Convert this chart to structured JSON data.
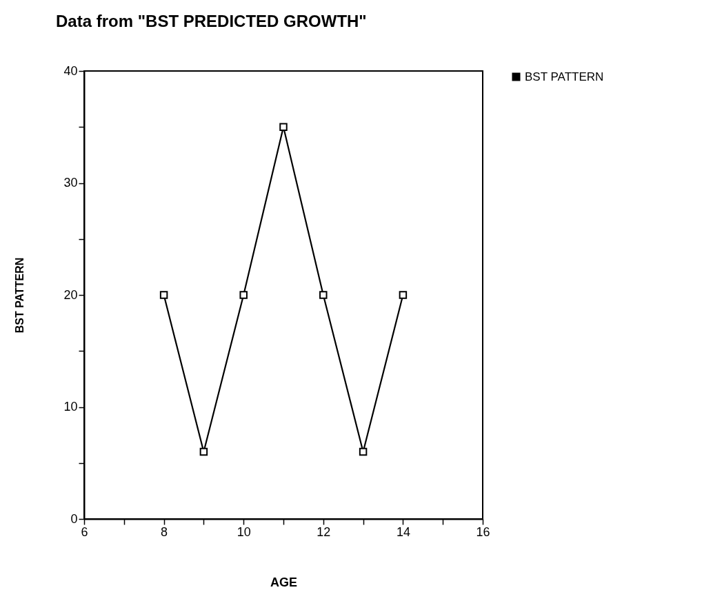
{
  "chart_data": {
    "type": "line",
    "title": "Data from \"BST PREDICTED GROWTH\"",
    "xlabel": "AGE",
    "ylabel": "BST PATTERN",
    "x": [
      8,
      9,
      10,
      11,
      12,
      13,
      14
    ],
    "series": [
      {
        "name": "BST PATTERN",
        "color": "#000000",
        "values": [
          20,
          6,
          20,
          35,
          20,
          6,
          20
        ]
      }
    ],
    "xlim": [
      6,
      16
    ],
    "xticks": [
      6,
      {
        "value": 7,
        "label": null
      },
      8,
      {
        "value": 9,
        "label": null
      },
      10,
      {
        "value": 11,
        "label": null
      },
      12,
      {
        "value": 13,
        "label": null
      },
      14,
      {
        "value": 15,
        "label": null
      },
      16
    ],
    "ylim": [
      0,
      40
    ],
    "yticks": [
      0,
      {
        "value": 5,
        "label": null
      },
      10,
      {
        "value": 15,
        "label": null
      },
      20,
      {
        "value": 25,
        "label": null
      },
      30,
      {
        "value": 35,
        "label": null
      },
      40
    ],
    "grid": false,
    "legend": "right",
    "marker": "square",
    "line_style": "solid"
  }
}
